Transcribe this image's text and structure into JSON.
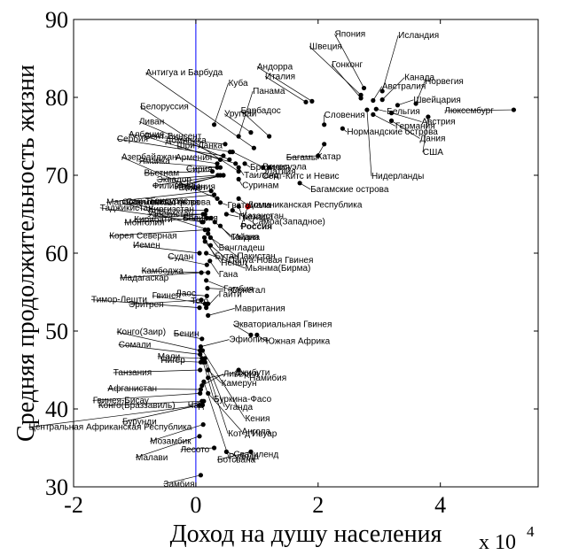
{
  "chart_data": {
    "type": "scatter",
    "title": "",
    "xlabel": "Доход на душу населения",
    "ylabel": "Средняя продолжительность жизни",
    "x_multiplier_base": "x 10",
    "x_multiplier_exp": "4",
    "xlim": [
      -20000,
      56000
    ],
    "ylim": [
      30,
      90
    ],
    "xticks": [
      -20000,
      0,
      20000,
      40000
    ],
    "xtick_labels": [
      "-2",
      "0",
      "2",
      "4"
    ],
    "yticks": [
      30,
      40,
      50,
      60,
      70,
      80,
      90
    ],
    "ytick_labels": [
      "30",
      "40",
      "50",
      "60",
      "70",
      "80",
      "90"
    ],
    "grid": false,
    "reference_line_x": 0,
    "colors": {
      "points": "#000000",
      "highlight": "#d40000",
      "ref_line": "#0000ff"
    },
    "points": [
      {
        "name": "Япония",
        "x": 27500,
        "y": 81.2,
        "label_dx": -33,
        "label_dy": -58
      },
      {
        "name": "Исландия",
        "x": 30500,
        "y": 80.8,
        "label_dx": 18,
        "label_dy": -60
      },
      {
        "name": "Швеция",
        "x": 27000,
        "y": 80.3,
        "label_dx": -58,
        "label_dy": -52
      },
      {
        "name": "Гонконг",
        "x": 27000,
        "y": 79.9,
        "label_dx": -33,
        "label_dy": -35
      },
      {
        "name": "Андорра",
        "x": 19000,
        "y": 79.5,
        "label_dx": -62,
        "label_dy": -36
      },
      {
        "name": "Италия",
        "x": 18000,
        "y": 79.4,
        "label_dx": -46,
        "label_dy": -26
      },
      {
        "name": "Канада",
        "x": 30500,
        "y": 79.7,
        "label_dx": 25,
        "label_dy": -22
      },
      {
        "name": "Австралия",
        "x": 29000,
        "y": 79.6,
        "label_dx": 10,
        "label_dy": -13
      },
      {
        "name": "Норвегия",
        "x": 36000,
        "y": 79.2,
        "label_dx": 10,
        "label_dy": -22
      },
      {
        "name": "Швейцария",
        "x": 33000,
        "y": 79.0,
        "label_dx": 18,
        "label_dy": -3
      },
      {
        "name": "Бельгия",
        "x": 29500,
        "y": 78.5,
        "label_dx": 12,
        "label_dy": 6
      },
      {
        "name": "Люксембург",
        "x": 52000,
        "y": 78.4,
        "label_dx": -78,
        "label_dy": 4
      },
      {
        "name": "Австрия",
        "x": 32000,
        "y": 78.0,
        "label_dx": 34,
        "label_dy": 13
      },
      {
        "name": "Германия",
        "x": 29000,
        "y": 77.8,
        "label_dx": 25,
        "label_dy": 16
      },
      {
        "name": "Дания",
        "x": 32000,
        "y": 77.0,
        "label_dx": 32,
        "label_dy": 23
      },
      {
        "name": "США",
        "x": 38000,
        "y": 77.5,
        "label_dx": -6,
        "label_dy": 43
      },
      {
        "name": "Словения",
        "x": 21000,
        "y": 76.5,
        "label_dx": 0,
        "label_dy": -8
      },
      {
        "name": "Нидерланды",
        "x": 28000,
        "y": 78.4,
        "label_dx": 5,
        "label_dy": 78
      },
      {
        "name": "Антигуа и Барбуда",
        "x": 9500,
        "y": 73.5,
        "label_dx": -122,
        "label_dy": -82
      },
      {
        "name": "Белоруссия",
        "x": 7000,
        "y": 70.5,
        "label_dx": -111,
        "label_dy": -70
      },
      {
        "name": "Куба",
        "x": 3000,
        "y": 76.5,
        "label_dx": 16,
        "label_dy": -44
      },
      {
        "name": "Панама",
        "x": 7000,
        "y": 75.0,
        "label_dx": 16,
        "label_dy": -48
      },
      {
        "name": "Ливан",
        "x": 5500,
        "y": 72.0,
        "label_dx": -102,
        "label_dy": -40
      },
      {
        "name": "Барбадос",
        "x": 12000,
        "y": 75.0,
        "label_dx": -32,
        "label_dy": -26
      },
      {
        "name": "Сент-Винсент",
        "x": 6500,
        "y": 71.5,
        "label_dx": -103,
        "label_dy": -28
      },
      {
        "name": "Сербия",
        "x": 4500,
        "y": 72.5,
        "label_dx": -120,
        "label_dy": -16
      },
      {
        "name": "Ямайка",
        "x": 4000,
        "y": 71.0,
        "label_dx": -92,
        "label_dy": -4
      },
      {
        "name": "Уругвай",
        "x": 9000,
        "y": 75.5,
        "label_dx": -30,
        "label_dy": -18
      },
      {
        "name": "Албания",
        "x": 4800,
        "y": 74.0,
        "label_dx": -109,
        "label_dy": -8
      },
      {
        "name": "Доминика",
        "x": 5600,
        "y": 73.0,
        "label_dx": -73,
        "label_dy": -10
      },
      {
        "name": "Азербайджан",
        "x": 3500,
        "y": 67.0,
        "label_dx": -108,
        "label_dy": -44
      },
      {
        "name": "Шри-Ланка",
        "x": 4000,
        "y": 72.0,
        "label_dx": -49,
        "label_dy": -13
      },
      {
        "name": "Армения",
        "x": 3500,
        "y": 71.5,
        "label_dx": -47,
        "label_dy": -4
      },
      {
        "name": "Соломоновы острова",
        "x": 2000,
        "y": 63.0,
        "label_dx": -97,
        "label_dy": -28
      },
      {
        "name": "Сирия",
        "x": 3500,
        "y": 71.0,
        "label_dx": -35,
        "label_dy": 5
      },
      {
        "name": "Эквадор",
        "x": 3600,
        "y": 70.0,
        "label_dx": -69,
        "label_dy": 8
      },
      {
        "name": "Иордания",
        "x": 4500,
        "y": 70.0,
        "label_dx": -55,
        "label_dy": 16
      },
      {
        "name": "Сан-Томе",
        "x": 1200,
        "y": 64.0,
        "label_dx": -87,
        "label_dy": -20
      },
      {
        "name": "Гондурас",
        "x": 3000,
        "y": 67.5,
        "label_dx": -72,
        "label_dy": 10
      },
      {
        "name": "Таджикистан",
        "x": 1000,
        "y": 64.0,
        "label_dx": -115,
        "label_dy": -13
      },
      {
        "name": "Маршалловы Острова",
        "x": 2500,
        "y": 68.0,
        "label_dx": -118,
        "label_dy": 16
      },
      {
        "name": "Монголия",
        "x": 1800,
        "y": 64.5,
        "label_dx": -93,
        "label_dy": 8
      },
      {
        "name": "Киргизстан",
        "x": 1700,
        "y": 65.5,
        "label_dx": -65,
        "label_dy": 2
      },
      {
        "name": "Узбекистан",
        "x": 1500,
        "y": 65.0,
        "label_dx": -65,
        "label_dy": 3
      },
      {
        "name": "Кирибати",
        "x": 1200,
        "y": 65.0,
        "label_dx": -78,
        "label_dy": 9
      },
      {
        "name": "Боливия",
        "x": 2500,
        "y": 64.5,
        "label_dx": -32,
        "label_dy": 3
      },
      {
        "name": "Корея Северная",
        "x": 1500,
        "y": 63.0,
        "label_dx": -108,
        "label_dy": 10
      },
      {
        "name": "Иемен",
        "x": 600,
        "y": 60.0,
        "label_dx": -75,
        "label_dy": -6
      },
      {
        "name": "Судан",
        "x": 1800,
        "y": 58.5,
        "label_dx": -44,
        "label_dy": -6
      },
      {
        "name": "Камбоджа",
        "x": 2000,
        "y": 57.5,
        "label_dx": -75,
        "label_dy": 1
      },
      {
        "name": "Мадагаскар",
        "x": 900,
        "y": 57.5,
        "label_dx": -92,
        "label_dy": 9
      },
      {
        "name": "Лаос",
        "x": 1800,
        "y": 54.5,
        "label_dx": -35,
        "label_dy": 0
      },
      {
        "name": "Эритрея",
        "x": 900,
        "y": 54.0,
        "label_dx": -82,
        "label_dy": 8
      },
      {
        "name": "Того",
        "x": 1500,
        "y": 53.5,
        "label_dx": -16,
        "label_dy": 0
      },
      {
        "name": "Тимор-Лешти",
        "x": 600,
        "y": 53.0,
        "label_dx": -122,
        "label_dy": -6
      },
      {
        "name": "Гвинея",
        "x": 2000,
        "y": 53.5,
        "label_dx": -63,
        "label_dy": -6
      },
      {
        "name": "Конго(Заир)",
        "x": 700,
        "y": 47.5,
        "label_dx": -94,
        "label_dy": -18
      },
      {
        "name": "Сомали",
        "x": 700,
        "y": 47.0,
        "label_dx": -92,
        "label_dy": -8
      },
      {
        "name": "Мали",
        "x": 1000,
        "y": 46.5,
        "label_dx": -50,
        "label_dy": 1
      },
      {
        "name": "Бенин",
        "x": 1000,
        "y": 49.0,
        "label_dx": -32,
        "label_dy": -3
      },
      {
        "name": "Нигер",
        "x": 800,
        "y": 46.0,
        "label_dx": -45,
        "label_dy": 1
      },
      {
        "name": "Танзания",
        "x": 700,
        "y": 45.0,
        "label_dx": -98,
        "label_dy": 6
      },
      {
        "name": "Афганистан",
        "x": 800,
        "y": 42.5,
        "label_dx": -105,
        "label_dy": 2
      },
      {
        "name": "Гвинея-Бисау",
        "x": 700,
        "y": 42.0,
        "label_dx": -121,
        "label_dy": 11
      },
      {
        "name": "Конго(Браззавиль)",
        "x": 1300,
        "y": 41.0,
        "label_dx": -119,
        "label_dy": 8
      },
      {
        "name": "Чад",
        "x": 1000,
        "y": 41.0,
        "label_dx": -16,
        "label_dy": 8
      },
      {
        "name": "Бурунди",
        "x": 600,
        "y": 40.5,
        "label_dx": -87,
        "label_dy": 22
      },
      {
        "name": "Центральная Африканская Республика",
        "x": 1100,
        "y": 40.5,
        "label_dx": -196,
        "label_dy": 28
      },
      {
        "name": "Мозамбик",
        "x": 1200,
        "y": 38.0,
        "label_dx": -60,
        "label_dy": 22
      },
      {
        "name": "Лесото",
        "x": 3000,
        "y": 35.0,
        "label_dx": -38,
        "label_dy": 5
      },
      {
        "name": "Малави",
        "x": 600,
        "y": 36.5,
        "label_dx": -72,
        "label_dy": 27
      },
      {
        "name": "Замбия",
        "x": 800,
        "y": 31.5,
        "label_dx": -42,
        "label_dy": 13
      },
      {
        "name": "Свазиленд",
        "x": 5000,
        "y": 34.5,
        "label_dx": 8,
        "label_dy": 6
      },
      {
        "name": "Ботсвана",
        "x": 9000,
        "y": 34.5,
        "label_dx": -38,
        "label_dy": 12
      },
      {
        "name": "Руанда",
        "x": 1300,
        "y": 43.5,
        "label_dx": 28,
        "label_dy": 88
      },
      {
        "name": "Ангола",
        "x": 2000,
        "y": 42.0,
        "label_dx": 38,
        "label_dy": 46
      },
      {
        "name": "Кот-д'Ивуар",
        "x": 1500,
        "y": 46.0,
        "label_dx": 26,
        "label_dy": 84
      },
      {
        "name": "Кения",
        "x": 1100,
        "y": 47.5,
        "label_dx": 48,
        "label_dy": 80
      },
      {
        "name": "Уганда",
        "x": 1500,
        "y": 46.5,
        "label_dx": 22,
        "label_dy": 58
      },
      {
        "name": "Намибия",
        "x": 7000,
        "y": 45.0,
        "label_dx": 12,
        "label_dy": 12
      },
      {
        "name": "Буркина-Фасо",
        "x": 1200,
        "y": 46.0,
        "label_dx": 12,
        "label_dy": 45
      },
      {
        "name": "Камерун",
        "x": 2000,
        "y": 45.0,
        "label_dx": 15,
        "label_dy": 18
      },
      {
        "name": "Либерия",
        "x": 1000,
        "y": 43.0,
        "label_dx": 24,
        "label_dy": -10
      },
      {
        "name": "Джибути",
        "x": 2000,
        "y": 44.0,
        "label_dx": 30,
        "label_dy": -3
      },
      {
        "name": "Эфиопия",
        "x": 800,
        "y": 48.0,
        "label_dx": 32,
        "label_dy": -5
      },
      {
        "name": "Экваториальная Гвинея",
        "x": 9000,
        "y": 49.5,
        "label_dx": -20,
        "label_dy": -9
      },
      {
        "name": "Южная Африка",
        "x": 10000,
        "y": 49.5,
        "label_dx": 10,
        "label_dy": 10
      },
      {
        "name": "Мавритания",
        "x": 2000,
        "y": 52.0,
        "label_dx": 30,
        "label_dy": -5
      },
      {
        "name": "Гаити",
        "x": 1700,
        "y": 53.0,
        "label_dx": 14,
        "label_dy": -12
      },
      {
        "name": "Сенегал",
        "x": 1700,
        "y": 56.5,
        "label_dx": 28,
        "label_dy": 14
      },
      {
        "name": "Гамбия",
        "x": 1900,
        "y": 55.5,
        "label_dx": 18,
        "label_dy": 4
      },
      {
        "name": "Гана",
        "x": 2300,
        "y": 59.0,
        "label_dx": 10,
        "label_dy": 18
      },
      {
        "name": "Мьянма(Бирма)",
        "x": 1700,
        "y": 60.0,
        "label_dx": 44,
        "label_dy": 20
      },
      {
        "name": "Папуа-Новая Гвинея",
        "x": 2400,
        "y": 61.0,
        "label_dx": 20,
        "label_dy": 20
      },
      {
        "name": "Бангладеш",
        "x": 2000,
        "y": 62.5,
        "label_dx": 12,
        "label_dy": 19
      },
      {
        "name": "Пакистан",
        "x": 2400,
        "y": 62.0,
        "label_dx": 30,
        "label_dy": 24
      },
      {
        "name": "Непал",
        "x": 1500,
        "y": 61.5,
        "label_dx": 18,
        "label_dy": 27
      },
      {
        "name": "Бутан",
        "x": 1400,
        "y": 62.0,
        "label_dx": 12,
        "label_dy": 24
      },
      {
        "name": "Индия",
        "x": 3100,
        "y": 64.0,
        "label_dx": 20,
        "label_dy": 20
      },
      {
        "name": "Гайана",
        "x": 4000,
        "y": 63.5,
        "label_dx": 12,
        "label_dy": 16
      },
      {
        "name": "Гренада",
        "x": 5000,
        "y": 65.0,
        "label_dx": 14,
        "label_dy": 6
      },
      {
        "name": "Казахстан",
        "x": 7000,
        "y": 66.0,
        "label_dx": 4,
        "label_dy": 14
      },
      {
        "name": "Самоа(Западное)",
        "x": 6000,
        "y": 65.5,
        "label_dx": 22,
        "label_dy": 16
      },
      {
        "name": "Доминиканская Республика",
        "x": 7000,
        "y": 67.0,
        "label_dx": 10,
        "label_dy": 10
      },
      {
        "name": "Гватемала",
        "x": 4000,
        "y": 66.5,
        "label_dx": 8,
        "label_dy": 6
      },
      {
        "name": "Россия",
        "x": 8500,
        "y": 66.0,
        "label_dx": -8,
        "label_dy": 26,
        "highlight": true
      },
      {
        "name": "Латвия",
        "x": 11000,
        "y": 71.0,
        "label_dx": 4,
        "label_dy": 8
      },
      {
        "name": "Багамские острова",
        "x": 17000,
        "y": 69.0,
        "label_dx": 12,
        "label_dy": 10
      },
      {
        "name": "Вьетнам",
        "x": 2700,
        "y": 70.5,
        "label_dx": -77,
        "label_dy": 5
      },
      {
        "name": "Филиппины",
        "x": 4500,
        "y": 70.0,
        "label_dx": -80,
        "label_dy": 15
      },
      {
        "name": "Египет",
        "x": 4000,
        "y": 70.0,
        "label_dx": -47,
        "label_dy": 17
      },
      {
        "name": "Венесуэла",
        "x": 6000,
        "y": 73.0,
        "label_dx": 34,
        "label_dy": 20
      },
      {
        "name": "Сент-Китс и Невис",
        "x": 12000,
        "y": 71.0,
        "label_dx": -8,
        "label_dy": 13
      },
      {
        "name": "Таиланд",
        "x": 7000,
        "y": 71.0,
        "label_dx": 6,
        "label_dy": 12
      },
      {
        "name": "Суринам",
        "x": 7000,
        "y": 69.5,
        "label_dx": 4,
        "label_dy": 10
      },
      {
        "name": "Бразилия",
        "x": 8000,
        "y": 71.5,
        "label_dx": 6,
        "label_dy": 7
      },
      {
        "name": "Катар",
        "x": 21000,
        "y": 74.0,
        "label_dx": -8,
        "label_dy": 17
      },
      {
        "name": "Нормандские острова",
        "x": 24000,
        "y": 76.0,
        "label_dx": 5,
        "label_dy": 7
      },
      {
        "name": "Багамы",
        "x": 20000,
        "y": 72.5,
        "label_dx": -36,
        "label_dy": 5
      }
    ]
  }
}
